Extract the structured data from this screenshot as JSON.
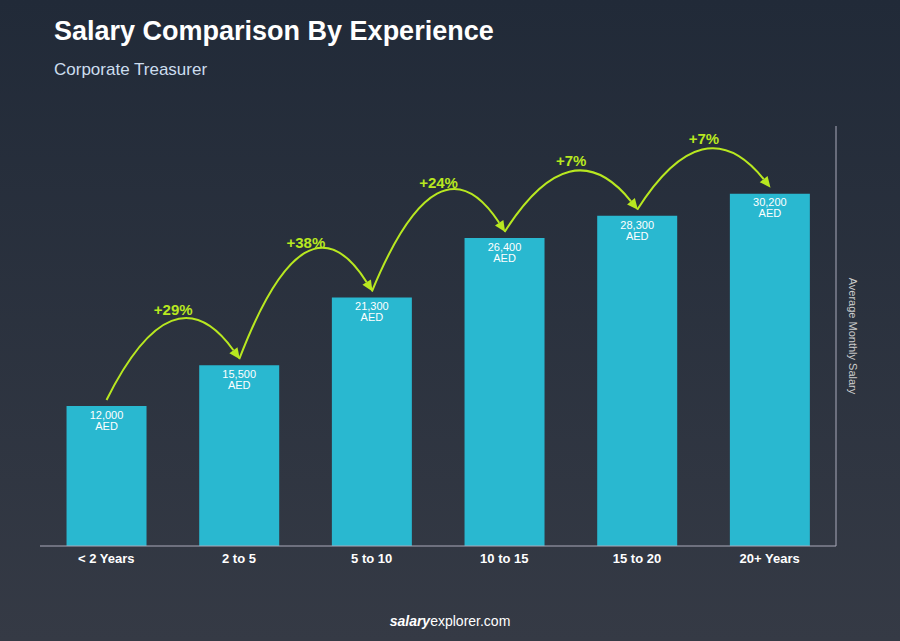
{
  "chart_data": {
    "type": "bar",
    "title": "Salary Comparison By Experience",
    "subtitle": "Corporate Treasurer",
    "categories": [
      "< 2 Years",
      "2 to 5",
      "5 to 10",
      "10 to 15",
      "15 to 20",
      "20+ Years"
    ],
    "values": [
      12000,
      15500,
      21300,
      26400,
      28300,
      30200
    ],
    "value_labels": [
      "12,000 AED",
      "15,500 AED",
      "21,300 AED",
      "26,400 AED",
      "28,300 AED",
      "30,200 AED"
    ],
    "data_labels": true,
    "color": "#29b8d0",
    "ylabel": "Average Monthly Salary",
    "ylim": [
      0,
      36000
    ],
    "tick_labels": "x",
    "grid": false,
    "annotations": [
      "+29%",
      "+38%",
      "+24%",
      "+7%",
      "+7%"
    ],
    "footer": [
      "salary",
      "explorer.com"
    ]
  }
}
